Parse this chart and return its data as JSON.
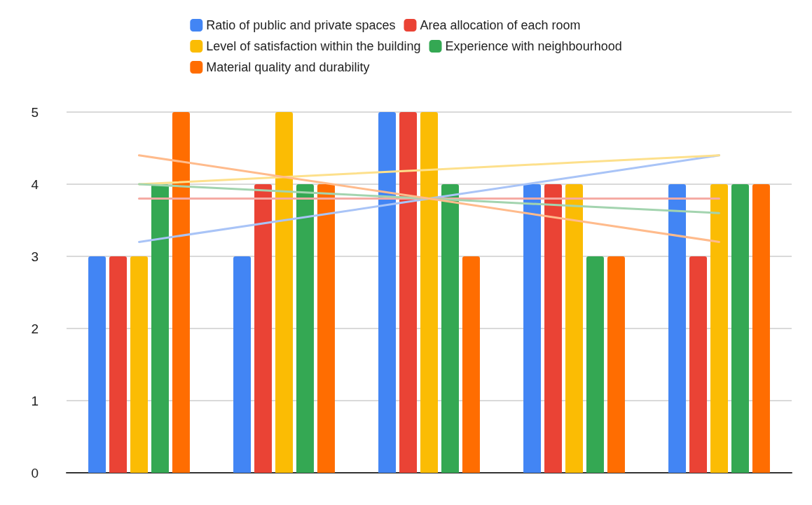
{
  "chart_data": {
    "type": "bar",
    "categories": [
      null,
      null,
      null,
      null,
      null
    ],
    "series": [
      {
        "name": "Ratio of public and private spaces",
        "color": "#4285f4",
        "values": [
          3,
          3,
          5,
          4,
          4
        ]
      },
      {
        "name": "Area allocation of each room",
        "color": "#ea4335",
        "values": [
          3,
          4,
          5,
          4,
          3
        ]
      },
      {
        "name": "Level of satisfaction within the building",
        "color": "#fbbc04",
        "values": [
          3,
          5,
          5,
          4,
          4
        ]
      },
      {
        "name": "Experience with neighbourhood",
        "color": "#34a853",
        "values": [
          4,
          4,
          4,
          3,
          4
        ]
      },
      {
        "name": "Material quality and durability",
        "color": "#ff6d01",
        "values": [
          5,
          4,
          3,
          3,
          4
        ]
      },
      {
        "type": "line",
        "color": "#a9c4f7",
        "values": [
          3.2,
          3.5,
          3.8,
          4.1,
          4.4
        ]
      },
      {
        "type": "line",
        "color": "#f5aba4",
        "values": [
          3.8,
          3.8,
          3.8,
          3.8,
          3.8
        ]
      },
      {
        "type": "line",
        "color": "#fde08c",
        "values": [
          4.0,
          4.1,
          4.2,
          4.3,
          4.4
        ]
      },
      {
        "type": "line",
        "color": "#a3d4af",
        "values": [
          4.0,
          3.9,
          3.8,
          3.7,
          3.6
        ]
      },
      {
        "type": "line",
        "color": "#ffbb8c",
        "values": [
          4.4,
          4.1,
          3.8,
          3.5,
          3.2
        ]
      }
    ],
    "ylim": [
      0,
      5
    ],
    "yticks": [
      0,
      1,
      2,
      3,
      4,
      5
    ],
    "grid": "y",
    "legend": "top"
  }
}
